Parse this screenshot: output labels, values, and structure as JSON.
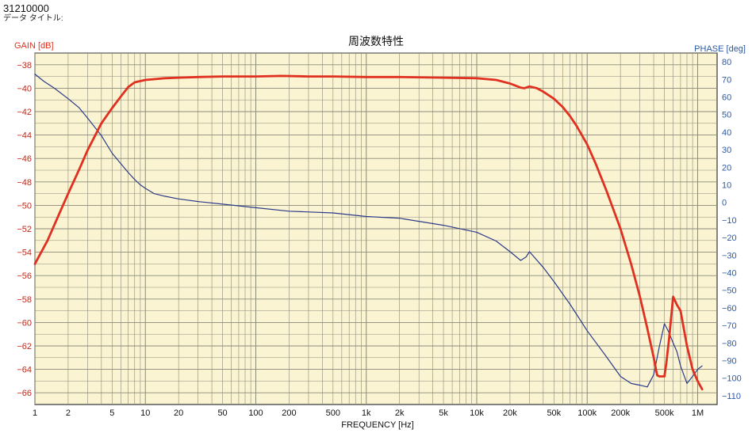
{
  "header": {
    "doc_id": "31210000",
    "data_title_label": "データ タイトル:"
  },
  "chart_data": {
    "type": "line",
    "title": "周波数特性",
    "xlabel": "FREQUENCY [Hz]",
    "ylabel_left": "GAIN [dB]",
    "ylabel_right": "PHASE [deg]",
    "xscale": "log",
    "xlim": [
      1,
      1500000
    ],
    "ylim_left": [
      -67,
      -37
    ],
    "ylim_right": [
      -115,
      85
    ],
    "grid": true,
    "x_ticks": [
      {
        "v": 1,
        "label": "1"
      },
      {
        "v": 2,
        "label": "2"
      },
      {
        "v": 5,
        "label": "5"
      },
      {
        "v": 10,
        "label": "10"
      },
      {
        "v": 20,
        "label": "20"
      },
      {
        "v": 50,
        "label": "50"
      },
      {
        "v": 100,
        "label": "100"
      },
      {
        "v": 200,
        "label": "200"
      },
      {
        "v": 500,
        "label": "500"
      },
      {
        "v": 1000,
        "label": "1k"
      },
      {
        "v": 2000,
        "label": "2k"
      },
      {
        "v": 5000,
        "label": "5k"
      },
      {
        "v": 10000,
        "label": "10k"
      },
      {
        "v": 20000,
        "label": "20k"
      },
      {
        "v": 50000,
        "label": "50k"
      },
      {
        "v": 100000,
        "label": "100k"
      },
      {
        "v": 200000,
        "label": "200k"
      },
      {
        "v": 500000,
        "label": "500k"
      },
      {
        "v": 1000000,
        "label": "1M"
      }
    ],
    "y_ticks_left": [
      -38,
      -40,
      -42,
      -44,
      -46,
      -48,
      -50,
      -52,
      -54,
      -56,
      -58,
      -60,
      -62,
      -64,
      -66
    ],
    "y_ticks_right": [
      80,
      70,
      60,
      50,
      40,
      30,
      20,
      10,
      0,
      -10,
      -20,
      -30,
      -40,
      -50,
      -60,
      -70,
      -80,
      -90,
      -100,
      -110
    ],
    "series": [
      {
        "axis": "left",
        "color": "#e03020",
        "x": [
          1,
          1.3,
          1.7,
          2,
          2.5,
          3,
          4,
          5,
          6,
          7,
          8,
          10,
          15,
          20,
          30,
          50,
          100,
          170,
          300,
          500,
          1000,
          2000,
          5000,
          10000,
          15000,
          20000,
          25000,
          27000,
          30000,
          35000,
          40000,
          50000,
          60000,
          70000,
          80000,
          100000,
          120000,
          150000,
          200000,
          250000,
          300000,
          350000,
          400000,
          430000,
          450000,
          480000,
          500000,
          520000,
          550000,
          600000,
          650000,
          700000,
          800000,
          900000,
          1000000,
          1100000
        ],
        "values": [
          -55,
          -53,
          -50.5,
          -49,
          -47,
          -45.3,
          -43,
          -41.7,
          -40.7,
          -39.9,
          -39.5,
          -39.3,
          -39.15,
          -39.1,
          -39.05,
          -39.0,
          -39.0,
          -38.95,
          -39.0,
          -39.0,
          -39.05,
          -39.05,
          -39.1,
          -39.15,
          -39.3,
          -39.6,
          -39.95,
          -40.0,
          -39.85,
          -40.0,
          -40.3,
          -40.9,
          -41.6,
          -42.4,
          -43.2,
          -44.8,
          -46.5,
          -48.8,
          -52.0,
          -55.0,
          -57.8,
          -60.5,
          -63.0,
          -64.5,
          -64.6,
          -64.6,
          -64.6,
          -63.5,
          -61.5,
          -57.8,
          -58.5,
          -59.0,
          -62.0,
          -64.0,
          -65.0,
          -65.7
        ]
      },
      {
        "axis": "right",
        "color": "#2a3a8a",
        "x": [
          1,
          1.2,
          1.5,
          2,
          2.5,
          3,
          4,
          5,
          6,
          7,
          8,
          9,
          10,
          12,
          15,
          20,
          30,
          50,
          100,
          200,
          500,
          1000,
          2000,
          5000,
          10000,
          15000,
          20000,
          25000,
          28000,
          30000,
          40000,
          50000,
          70000,
          100000,
          150000,
          200000,
          250000,
          300000,
          350000,
          400000,
          450000,
          500000,
          550000,
          600000,
          650000,
          700000,
          800000,
          900000,
          1000000,
          1100000
        ],
        "values": [
          73,
          69,
          65,
          59,
          54,
          48,
          38,
          28,
          22,
          17,
          13,
          10,
          8,
          5,
          3.5,
          2,
          0.5,
          -1,
          -3,
          -5,
          -6,
          -8,
          -9,
          -13,
          -17,
          -22,
          -28,
          -33,
          -31,
          -28,
          -37,
          -45,
          -58,
          -73,
          -88,
          -99,
          -103,
          -104,
          -105,
          -98,
          -82,
          -69,
          -74,
          -80,
          -85,
          -93,
          -103,
          -99,
          -95,
          -93
        ]
      }
    ]
  }
}
